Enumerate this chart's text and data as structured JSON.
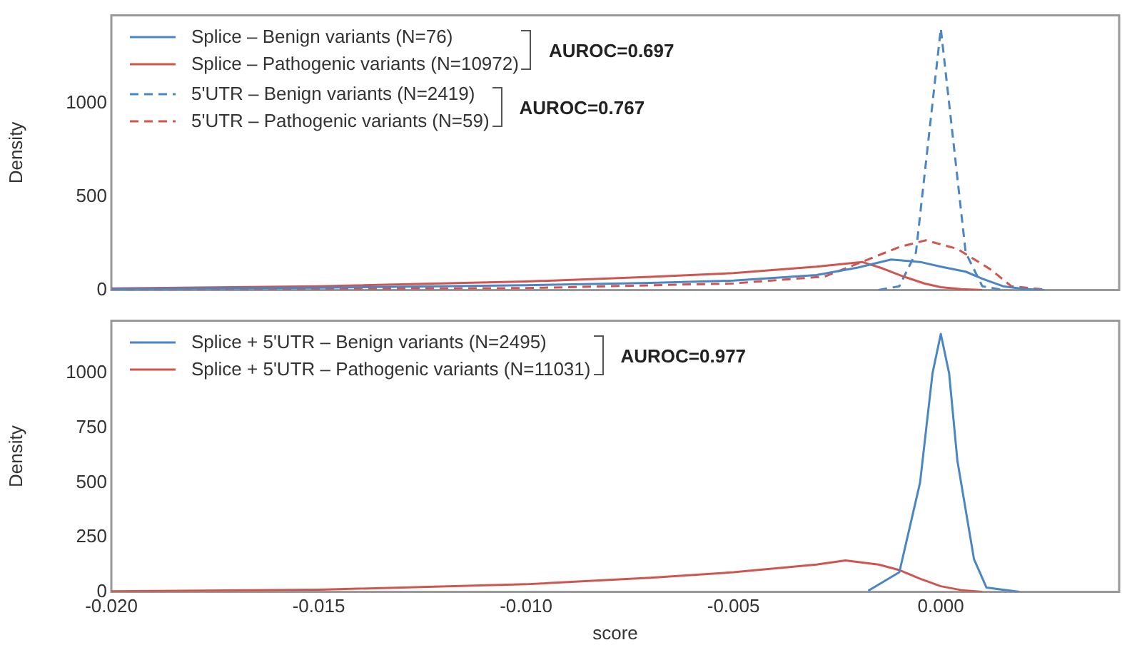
{
  "chart_data": [
    {
      "type": "line",
      "ylabel": "Density",
      "xlim": [
        -0.02,
        0.0043
      ],
      "ylim": [
        0,
        1470
      ],
      "yticks": [
        0,
        500,
        {
          "value": 1000,
          "label": "1000"
        }
      ],
      "tick_labels": "y",
      "grid": false,
      "legend": "top left",
      "annotations": [
        "AUROC=0.697",
        "AUROC=0.767"
      ],
      "series": [
        {
          "name": "Splice – Benign variants (N=76)",
          "color": "#4a86c5",
          "line_style": "solid",
          "x": [
            -0.02,
            -0.015,
            -0.01,
            -0.007,
            -0.005,
            -0.003,
            -0.002,
            -0.0012,
            -0.0005,
            0,
            0.0006,
            0.001,
            0.0015,
            0.002,
            0.0025
          ],
          "values": [
            5,
            12,
            25,
            38,
            50,
            80,
            120,
            163,
            150,
            125,
            98,
            60,
            20,
            5,
            0
          ]
        },
        {
          "name": "Splice – Pathogenic variants (N=10972)",
          "color": "#d0554f",
          "line_style": "solid",
          "x": [
            -0.02,
            -0.015,
            -0.01,
            -0.007,
            -0.005,
            -0.003,
            -0.0019,
            -0.0014,
            -0.0009,
            -0.0004,
            0,
            0.0005,
            0.001
          ],
          "values": [
            8,
            20,
            45,
            70,
            90,
            125,
            150,
            115,
            72,
            35,
            15,
            4,
            0
          ]
        },
        {
          "name": "5'UTR – Benign variants (N=2419)",
          "color": "#4a86c5",
          "line_style": "dashed",
          "x": [
            -0.0015,
            -0.001,
            -0.0006,
            -0.0003,
            0,
            0.0003,
            0.0006,
            0.001,
            0.0015
          ],
          "values": [
            0,
            20,
            200,
            800,
            1400,
            800,
            200,
            20,
            0
          ]
        },
        {
          "name": "5'UTR – Pathogenic variants (N=59)",
          "color": "#d0554f",
          "line_style": "dashed",
          "x": [
            -0.02,
            -0.01,
            -0.005,
            -0.0028,
            -0.0019,
            -0.001,
            -0.00036,
            0.0004,
            0.0012,
            0.0017,
            0.0025
          ],
          "values": [
            2,
            10,
            35,
            72,
            150,
            230,
            266,
            220,
            110,
            20,
            2
          ]
        }
      ]
    },
    {
      "type": "line",
      "ylabel": "Density",
      "xlabel": "score",
      "xlim": [
        -0.02,
        0.0043
      ],
      "xticks": [
        {
          "value": -0.02,
          "label": "-0.020"
        },
        {
          "value": -0.015,
          "label": "-0.015"
        },
        {
          "value": -0.01,
          "label": "-0.010"
        },
        {
          "value": -0.005,
          "label": "-0.005"
        },
        {
          "value": 0,
          "label": "0.000"
        }
      ],
      "ylim": [
        0,
        1240
      ],
      "yticks": [
        0,
        250,
        500,
        750,
        {
          "value": 1000,
          "label": "1000"
        }
      ],
      "grid": false,
      "legend": "top left",
      "annotations": [
        "AUROC=0.977"
      ],
      "series": [
        {
          "name": "Splice + 5'UTR – Benign variants (N=2495)",
          "color": "#4a86c5",
          "line_style": "solid",
          "x": [
            -0.00175,
            -0.001,
            -0.0005,
            -0.0002,
            0,
            0.0002,
            0.0004,
            0.0008,
            0.0011,
            0.0019
          ],
          "values": [
            5,
            90,
            500,
            1000,
            1180,
            1000,
            600,
            150,
            20,
            0
          ]
        },
        {
          "name": "Splice + 5'UTR – Pathogenic variants (N=11031)",
          "color": "#d0554f",
          "line_style": "solid",
          "x": [
            -0.02,
            -0.015,
            -0.01,
            -0.007,
            -0.005,
            -0.003,
            -0.0023,
            -0.0015,
            -0.001,
            -0.0005,
            0,
            0.0005,
            0.001
          ],
          "values": [
            3,
            10,
            35,
            65,
            90,
            125,
            144,
            125,
            100,
            60,
            26,
            8,
            0
          ]
        }
      ]
    }
  ]
}
